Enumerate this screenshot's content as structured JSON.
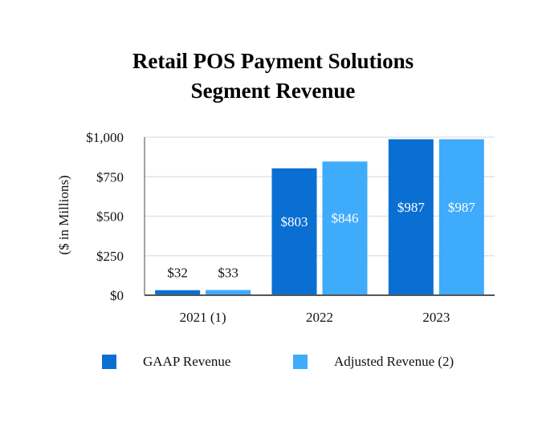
{
  "chart_data": {
    "type": "bar",
    "title": "Retail POS Payment Solutions",
    "subtitle": "Segment Revenue",
    "ylabel": "($ in Millions)",
    "xlabel": "",
    "categories": [
      "2021 (1)",
      "2022",
      "2023"
    ],
    "series": [
      {
        "name": "GAAP Revenue",
        "values": [
          32,
          803,
          987
        ],
        "labels": [
          "$32",
          "$803",
          "$987"
        ],
        "color": "#0a6fd3"
      },
      {
        "name": "Adjusted Revenue (2)",
        "values": [
          33,
          846,
          987
        ],
        "labels": [
          "$33",
          "$846",
          "$987"
        ],
        "color": "#3fabfb"
      }
    ],
    "ylim": [
      0,
      1000
    ],
    "yticks": [
      0,
      250,
      500,
      750,
      1000
    ],
    "ytick_labels": [
      "$0",
      "$250",
      "$500",
      "$750",
      "$1,000"
    ],
    "grid": true,
    "legend_position": "bottom"
  }
}
